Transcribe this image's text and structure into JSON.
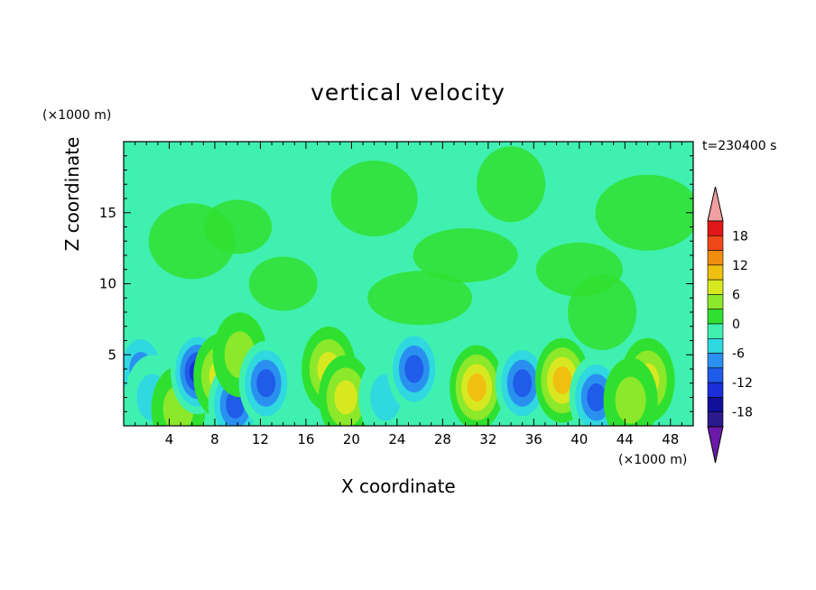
{
  "chart_data": {
    "type": "heatmap",
    "title": "vertical velocity",
    "xlabel": "X coordinate",
    "ylabel": "Z coordinate",
    "x_unit": "(×1000 m)",
    "z_unit": "(×1000 m)",
    "annotation": "t=230400 s",
    "xlim": [
      0,
      50
    ],
    "ylim": [
      0,
      20
    ],
    "xticks": [
      4,
      8,
      12,
      16,
      20,
      24,
      28,
      32,
      36,
      40,
      44,
      48
    ],
    "yticks": [
      5,
      10,
      15
    ],
    "colorbar": {
      "labels": [
        "18",
        "12",
        "6",
        "0",
        "-6",
        "-12",
        "-18"
      ],
      "levels": [
        -21,
        -18,
        -15,
        -12,
        -9,
        -6,
        -3,
        0,
        3,
        6,
        9,
        12,
        15,
        18,
        21
      ],
      "colors": [
        "#6a1aa8",
        "#2a1a8c",
        "#10109a",
        "#1a2fd8",
        "#1f5ce8",
        "#2a90f0",
        "#30d8e0",
        "#40f0b0",
        "#30e030",
        "#8ce82a",
        "#d8e820",
        "#f0c010",
        "#f08c10",
        "#f04818",
        "#e01818",
        "#f0a0a0"
      ]
    },
    "cells": [
      {
        "x": 1.5,
        "z": 4.0,
        "w": -7
      },
      {
        "x": 2.5,
        "z": 2.0,
        "w": -6
      },
      {
        "x": 4.8,
        "z": 1.2,
        "w": 6
      },
      {
        "x": 6.5,
        "z": 3.8,
        "w": -15
      },
      {
        "x": 8.5,
        "z": 3.5,
        "w": 7
      },
      {
        "x": 9.8,
        "z": 1.5,
        "w": -10
      },
      {
        "x": 10.2,
        "z": 5.0,
        "w": 6
      },
      {
        "x": 12.5,
        "z": 3.0,
        "w": -12
      },
      {
        "x": 18.0,
        "z": 4.0,
        "w": 9
      },
      {
        "x": 19.5,
        "z": 2.0,
        "w": 7
      },
      {
        "x": 23.0,
        "z": 2.0,
        "w": -5
      },
      {
        "x": 25.5,
        "z": 4.0,
        "w": -10
      },
      {
        "x": 31.0,
        "z": 2.7,
        "w": 12
      },
      {
        "x": 35.0,
        "z": 3.0,
        "w": -12
      },
      {
        "x": 38.5,
        "z": 3.2,
        "w": 11
      },
      {
        "x": 41.5,
        "z": 2.0,
        "w": -10
      },
      {
        "x": 46.0,
        "z": 3.2,
        "w": 8
      },
      {
        "x": 44.5,
        "z": 1.8,
        "w": 6
      }
    ]
  }
}
